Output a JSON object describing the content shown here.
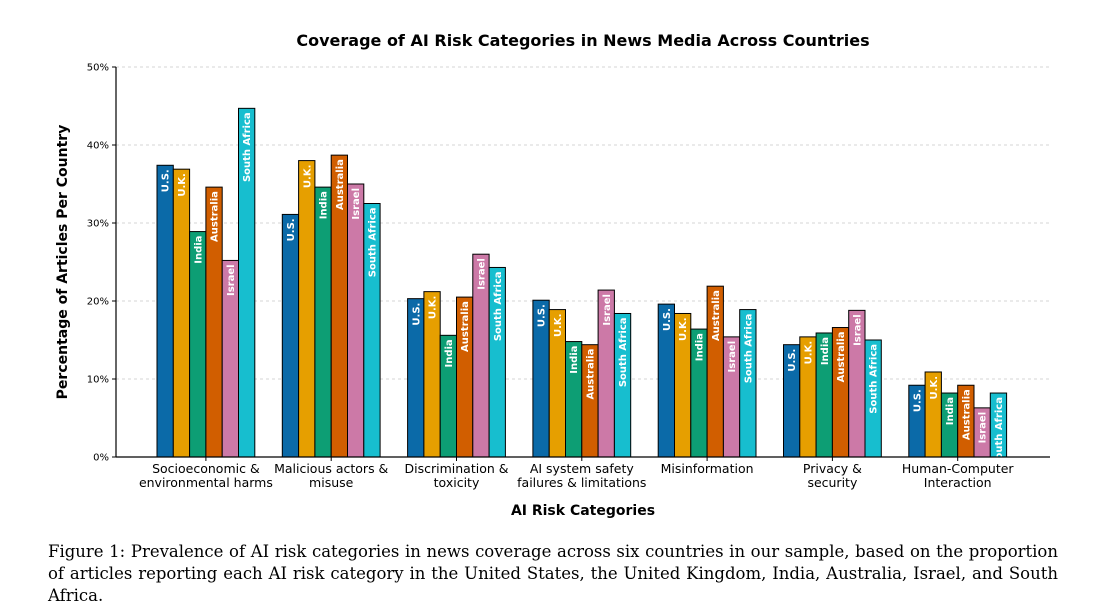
{
  "chart_data": {
    "type": "bar",
    "title": "Coverage of AI Risk Categories in News Media Across Countries",
    "xlabel": "AI Risk Categories",
    "ylabel": "Percentage of Articles Per Country",
    "ylim": [
      0,
      50
    ],
    "yticks": [
      "0%",
      "10%",
      "20%",
      "30%",
      "40%",
      "50%"
    ],
    "grid": "y-dashed",
    "categories": [
      [
        "Socioeconomic &",
        "environmental harms"
      ],
      [
        "Malicious actors &",
        "misuse"
      ],
      [
        "Discrimination &",
        "toxicity"
      ],
      [
        "AI system safety",
        "failures & limitations"
      ],
      [
        "Misinformation"
      ],
      [
        "Privacy &",
        "security"
      ],
      [
        "Human-Computer",
        "Interaction"
      ]
    ],
    "series": [
      {
        "name": "U.S.",
        "color": "#0b6aa8",
        "values": [
          37.4,
          31.1,
          20.3,
          20.1,
          19.6,
          14.4,
          9.2
        ]
      },
      {
        "name": "U.K.",
        "color": "#e69f00",
        "values": [
          36.9,
          38.0,
          21.2,
          18.9,
          18.4,
          15.4,
          10.9
        ]
      },
      {
        "name": "India",
        "color": "#0d9e74",
        "values": [
          28.9,
          34.6,
          15.6,
          14.8,
          16.4,
          15.9,
          8.2
        ]
      },
      {
        "name": "Australia",
        "color": "#d15e00",
        "values": [
          34.6,
          38.7,
          20.5,
          14.4,
          21.9,
          16.6,
          9.2
        ]
      },
      {
        "name": "Israel",
        "color": "#cc79a7",
        "values": [
          25.2,
          35.0,
          26.0,
          21.4,
          15.4,
          18.8,
          6.3
        ]
      },
      {
        "name": "South Africa",
        "color": "#17becf",
        "values": [
          44.7,
          32.5,
          24.3,
          18.4,
          18.9,
          15.0,
          8.2
        ]
      }
    ]
  },
  "caption": "Figure 1: Prevalence of AI risk categories in news coverage across six countries in our sample, based on the proportion of articles reporting each AI risk category in the United States, the United Kingdom, India, Australia, Israel, and South Africa."
}
